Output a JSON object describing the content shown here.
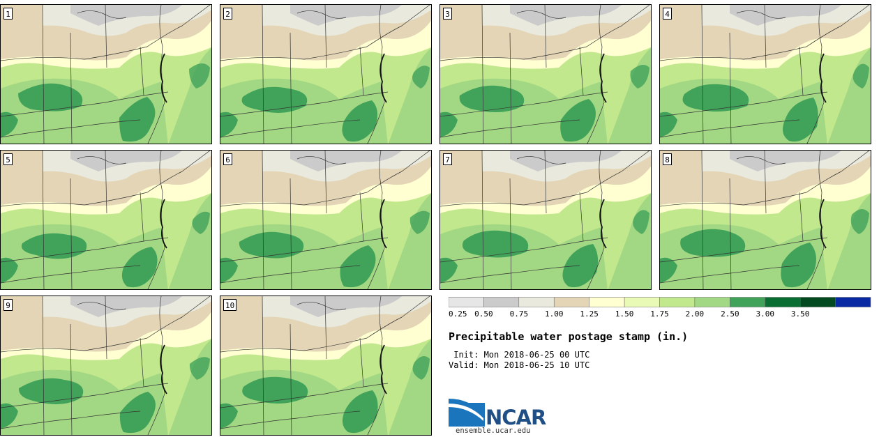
{
  "stamps": [
    {
      "label": "1",
      "variant": 0
    },
    {
      "label": "2",
      "variant": 1
    },
    {
      "label": "3",
      "variant": 2
    },
    {
      "label": "4",
      "variant": 3
    },
    {
      "label": "5",
      "variant": 4
    },
    {
      "label": "6",
      "variant": 5
    },
    {
      "label": "7",
      "variant": 6
    },
    {
      "label": "8",
      "variant": 7
    },
    {
      "label": "9",
      "variant": 8
    },
    {
      "label": "10",
      "variant": 9
    }
  ],
  "legend": {
    "colors": [
      "#e6e6e6",
      "#cbcbcb",
      "#e9e9dd",
      "#e3d5b5",
      "#ffffd2",
      "#e9f9b6",
      "#c2e88d",
      "#a2d783",
      "#41a35a",
      "#0a6e33",
      "#044a20",
      "#0a2aa4"
    ],
    "ticks": [
      "0.25",
      "0.50",
      "0.75",
      "1.00",
      "1.25",
      "1.50",
      "1.75",
      "2.00",
      "2.50",
      "3.00",
      "3.50"
    ]
  },
  "title": "Precipitable water postage stamp (in.)",
  "init_line": " Init: Mon 2018-06-25 00 UTC",
  "valid_line": "Valid: Mon 2018-06-25 10 UTC",
  "logo_text": "NCAR",
  "site": "ensemble.ucar.edu"
}
